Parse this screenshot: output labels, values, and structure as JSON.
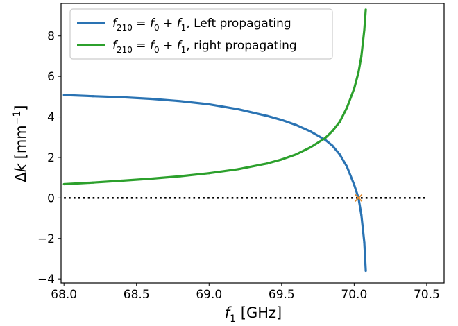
{
  "chart_data": {
    "type": "line",
    "xlabel": {
      "var": "f",
      "sub": "1",
      "unit": " [GHz]"
    },
    "ylabel": {
      "pre": "Δ",
      "var": "k",
      "unit_open": " [mm",
      "sup": "−1",
      "unit_close": "]"
    },
    "xlim": [
      67.98,
      70.62
    ],
    "ylim": [
      -4.2,
      9.6
    ],
    "xticks": [
      "68.0",
      "68.5",
      "69.0",
      "69.5",
      "70.0",
      "70.5"
    ],
    "xtick_values": [
      68.0,
      68.5,
      69.0,
      69.5,
      70.0,
      70.5
    ],
    "yticks": [
      "−4",
      "−2",
      "0",
      "2",
      "4",
      "6",
      "8"
    ],
    "ytick_values": [
      -4,
      -2,
      0,
      2,
      4,
      6,
      8
    ],
    "grid": false,
    "legend_position": "top-left",
    "legend": [
      {
        "var": "f",
        "sub": "210",
        "eq": " = ",
        "v1": "f",
        "s1": "0",
        "plus": " + ",
        "v2": "f",
        "s2": "1",
        "suffix": ", Left propagating"
      },
      {
        "var": "f",
        "sub": "210",
        "eq": " = ",
        "v1": "f",
        "s1": "0",
        "plus": " + ",
        "v2": "f",
        "s2": "1",
        "suffix": ", right propagating"
      }
    ],
    "series": [
      {
        "color": "#2a73b3",
        "x": [
          68.0,
          68.2,
          68.4,
          68.6,
          68.8,
          69.0,
          69.2,
          69.4,
          69.5,
          69.6,
          69.7,
          69.8,
          69.85,
          69.9,
          69.95,
          70.0,
          70.03,
          70.05,
          70.07,
          70.08
        ],
        "y": [
          5.08,
          5.02,
          4.97,
          4.89,
          4.78,
          4.62,
          4.38,
          4.05,
          3.85,
          3.6,
          3.28,
          2.87,
          2.58,
          2.15,
          1.55,
          0.65,
          0.0,
          -0.85,
          -2.2,
          -3.6
        ]
      },
      {
        "color": "#2ca02c",
        "x": [
          68.0,
          68.2,
          68.4,
          68.6,
          68.8,
          69.0,
          69.2,
          69.4,
          69.5,
          69.6,
          69.7,
          69.8,
          69.85,
          69.9,
          69.95,
          70.0,
          70.03,
          70.05,
          70.07,
          70.08
        ],
        "y": [
          0.68,
          0.76,
          0.85,
          0.95,
          1.07,
          1.22,
          1.42,
          1.7,
          1.9,
          2.15,
          2.5,
          2.95,
          3.3,
          3.75,
          4.45,
          5.4,
          6.2,
          7.0,
          8.3,
          9.3
        ]
      },
      {
        "color": "#000000",
        "style": "dotted",
        "x": [
          68.0,
          70.5
        ],
        "y": [
          0,
          0
        ]
      }
    ],
    "marker": {
      "x": 70.03,
      "y": 0,
      "symbol": "x",
      "color": "#e08a2c"
    }
  }
}
